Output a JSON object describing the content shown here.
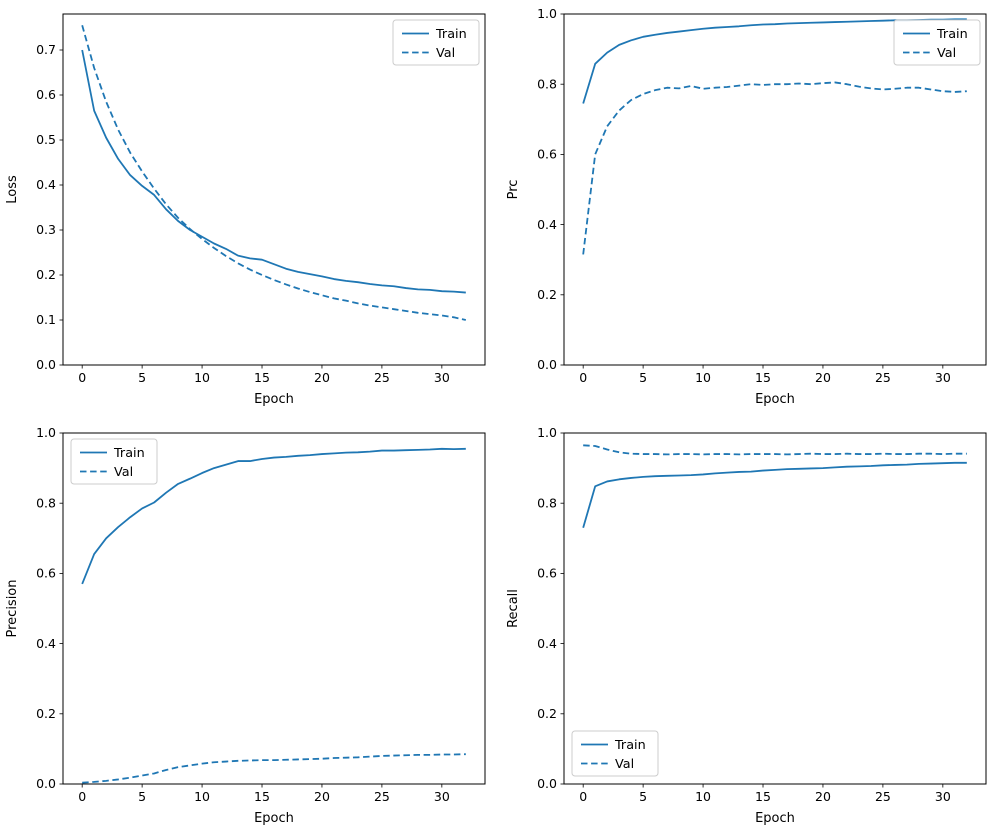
{
  "figure": {
    "background": "#ffffff",
    "line_color": "#1f77b4",
    "spine_color": "#000000",
    "legend_border_color": "#cccccc"
  },
  "chart_data": [
    {
      "type": "line",
      "title": "",
      "xlabel": "Epoch",
      "ylabel": "Loss",
      "xlim": [
        -1.6,
        33.6
      ],
      "ylim": [
        0.0,
        0.78
      ],
      "xticks": [
        0,
        5,
        10,
        15,
        20,
        25,
        30
      ],
      "yticks": [
        0.0,
        0.1,
        0.2,
        0.3,
        0.4,
        0.5,
        0.6,
        0.7
      ],
      "grid": false,
      "legend_loc": "upper right",
      "x": [
        0,
        1,
        2,
        3,
        4,
        5,
        6,
        7,
        8,
        9,
        10,
        11,
        12,
        13,
        14,
        15,
        16,
        17,
        18,
        19,
        20,
        21,
        22,
        23,
        24,
        25,
        26,
        27,
        28,
        29,
        30,
        31,
        32
      ],
      "series": [
        {
          "name": "Train",
          "style": "solid",
          "values": [
            0.7,
            0.565,
            0.505,
            0.458,
            0.422,
            0.398,
            0.378,
            0.346,
            0.32,
            0.3,
            0.285,
            0.27,
            0.258,
            0.243,
            0.237,
            0.234,
            0.224,
            0.214,
            0.207,
            0.202,
            0.197,
            0.191,
            0.187,
            0.184,
            0.18,
            0.177,
            0.175,
            0.171,
            0.168,
            0.167,
            0.164,
            0.163,
            0.161
          ]
        },
        {
          "name": "Val",
          "style": "dashed",
          "values": [
            0.755,
            0.66,
            0.585,
            0.523,
            0.472,
            0.43,
            0.392,
            0.357,
            0.327,
            0.302,
            0.28,
            0.26,
            0.242,
            0.226,
            0.212,
            0.2,
            0.189,
            0.179,
            0.17,
            0.162,
            0.155,
            0.148,
            0.143,
            0.137,
            0.132,
            0.128,
            0.124,
            0.12,
            0.116,
            0.113,
            0.11,
            0.106,
            0.1
          ]
        }
      ]
    },
    {
      "type": "line",
      "title": "",
      "xlabel": "Epoch",
      "ylabel": "Prc",
      "xlim": [
        -1.6,
        33.6
      ],
      "ylim": [
        0.0,
        1.0
      ],
      "xticks": [
        0,
        5,
        10,
        15,
        20,
        25,
        30
      ],
      "yticks": [
        0.0,
        0.2,
        0.4,
        0.6,
        0.8,
        1.0
      ],
      "grid": false,
      "legend_loc": "upper right",
      "x": [
        0,
        1,
        2,
        3,
        4,
        5,
        6,
        7,
        8,
        9,
        10,
        11,
        12,
        13,
        14,
        15,
        16,
        17,
        18,
        19,
        20,
        21,
        22,
        23,
        24,
        25,
        26,
        27,
        28,
        29,
        30,
        31,
        32
      ],
      "series": [
        {
          "name": "Train",
          "style": "solid",
          "values": [
            0.745,
            0.858,
            0.89,
            0.912,
            0.925,
            0.935,
            0.941,
            0.946,
            0.95,
            0.954,
            0.958,
            0.961,
            0.963,
            0.965,
            0.968,
            0.97,
            0.971,
            0.973,
            0.974,
            0.975,
            0.976,
            0.977,
            0.978,
            0.979,
            0.98,
            0.981,
            0.982,
            0.982,
            0.983,
            0.984,
            0.984,
            0.985,
            0.985
          ]
        },
        {
          "name": "Val",
          "style": "dashed",
          "values": [
            0.315,
            0.6,
            0.68,
            0.725,
            0.755,
            0.772,
            0.783,
            0.79,
            0.788,
            0.795,
            0.787,
            0.79,
            0.792,
            0.796,
            0.8,
            0.798,
            0.8,
            0.8,
            0.802,
            0.8,
            0.803,
            0.805,
            0.8,
            0.793,
            0.788,
            0.785,
            0.787,
            0.79,
            0.79,
            0.785,
            0.78,
            0.778,
            0.78
          ]
        }
      ]
    },
    {
      "type": "line",
      "title": "",
      "xlabel": "Epoch",
      "ylabel": "Precision",
      "xlim": [
        -1.6,
        33.6
      ],
      "ylim": [
        0.0,
        1.0
      ],
      "xticks": [
        0,
        5,
        10,
        15,
        20,
        25,
        30
      ],
      "yticks": [
        0.0,
        0.2,
        0.4,
        0.6,
        0.8,
        1.0
      ],
      "grid": false,
      "legend_loc": "upper left",
      "x": [
        0,
        1,
        2,
        3,
        4,
        5,
        6,
        7,
        8,
        9,
        10,
        11,
        12,
        13,
        14,
        15,
        16,
        17,
        18,
        19,
        20,
        21,
        22,
        23,
        24,
        25,
        26,
        27,
        28,
        29,
        30,
        31,
        32
      ],
      "series": [
        {
          "name": "Train",
          "style": "solid",
          "values": [
            0.57,
            0.655,
            0.7,
            0.732,
            0.76,
            0.785,
            0.802,
            0.83,
            0.855,
            0.87,
            0.886,
            0.9,
            0.91,
            0.92,
            0.92,
            0.926,
            0.93,
            0.932,
            0.935,
            0.937,
            0.94,
            0.942,
            0.944,
            0.945,
            0.947,
            0.95,
            0.95,
            0.951,
            0.952,
            0.953,
            0.955,
            0.954,
            0.955
          ]
        },
        {
          "name": "Val",
          "style": "dashed",
          "values": [
            0.004,
            0.006,
            0.009,
            0.013,
            0.018,
            0.024,
            0.03,
            0.04,
            0.048,
            0.053,
            0.058,
            0.062,
            0.064,
            0.066,
            0.067,
            0.068,
            0.068,
            0.069,
            0.07,
            0.071,
            0.072,
            0.074,
            0.075,
            0.076,
            0.078,
            0.08,
            0.081,
            0.082,
            0.083,
            0.083,
            0.084,
            0.084,
            0.085
          ]
        }
      ]
    },
    {
      "type": "line",
      "title": "",
      "xlabel": "Epoch",
      "ylabel": "Recall",
      "xlim": [
        -1.6,
        33.6
      ],
      "ylim": [
        0.0,
        1.0
      ],
      "xticks": [
        0,
        5,
        10,
        15,
        20,
        25,
        30
      ],
      "yticks": [
        0.0,
        0.2,
        0.4,
        0.6,
        0.8,
        1.0
      ],
      "grid": false,
      "legend_loc": "lower left",
      "x": [
        0,
        1,
        2,
        3,
        4,
        5,
        6,
        7,
        8,
        9,
        10,
        11,
        12,
        13,
        14,
        15,
        16,
        17,
        18,
        19,
        20,
        21,
        22,
        23,
        24,
        25,
        26,
        27,
        28,
        29,
        30,
        31,
        32
      ],
      "series": [
        {
          "name": "Train",
          "style": "solid",
          "values": [
            0.73,
            0.848,
            0.862,
            0.868,
            0.872,
            0.875,
            0.877,
            0.878,
            0.879,
            0.88,
            0.882,
            0.885,
            0.887,
            0.889,
            0.89,
            0.893,
            0.895,
            0.897,
            0.898,
            0.899,
            0.9,
            0.902,
            0.904,
            0.905,
            0.906,
            0.908,
            0.909,
            0.91,
            0.912,
            0.913,
            0.914,
            0.915,
            0.915
          ]
        },
        {
          "name": "Val",
          "style": "dashed",
          "values": [
            0.965,
            0.963,
            0.953,
            0.945,
            0.941,
            0.94,
            0.94,
            0.939,
            0.94,
            0.94,
            0.939,
            0.94,
            0.94,
            0.939,
            0.94,
            0.94,
            0.94,
            0.939,
            0.94,
            0.941,
            0.94,
            0.94,
            0.941,
            0.94,
            0.94,
            0.941,
            0.94,
            0.94,
            0.941,
            0.941,
            0.94,
            0.941,
            0.941
          ]
        }
      ]
    }
  ]
}
